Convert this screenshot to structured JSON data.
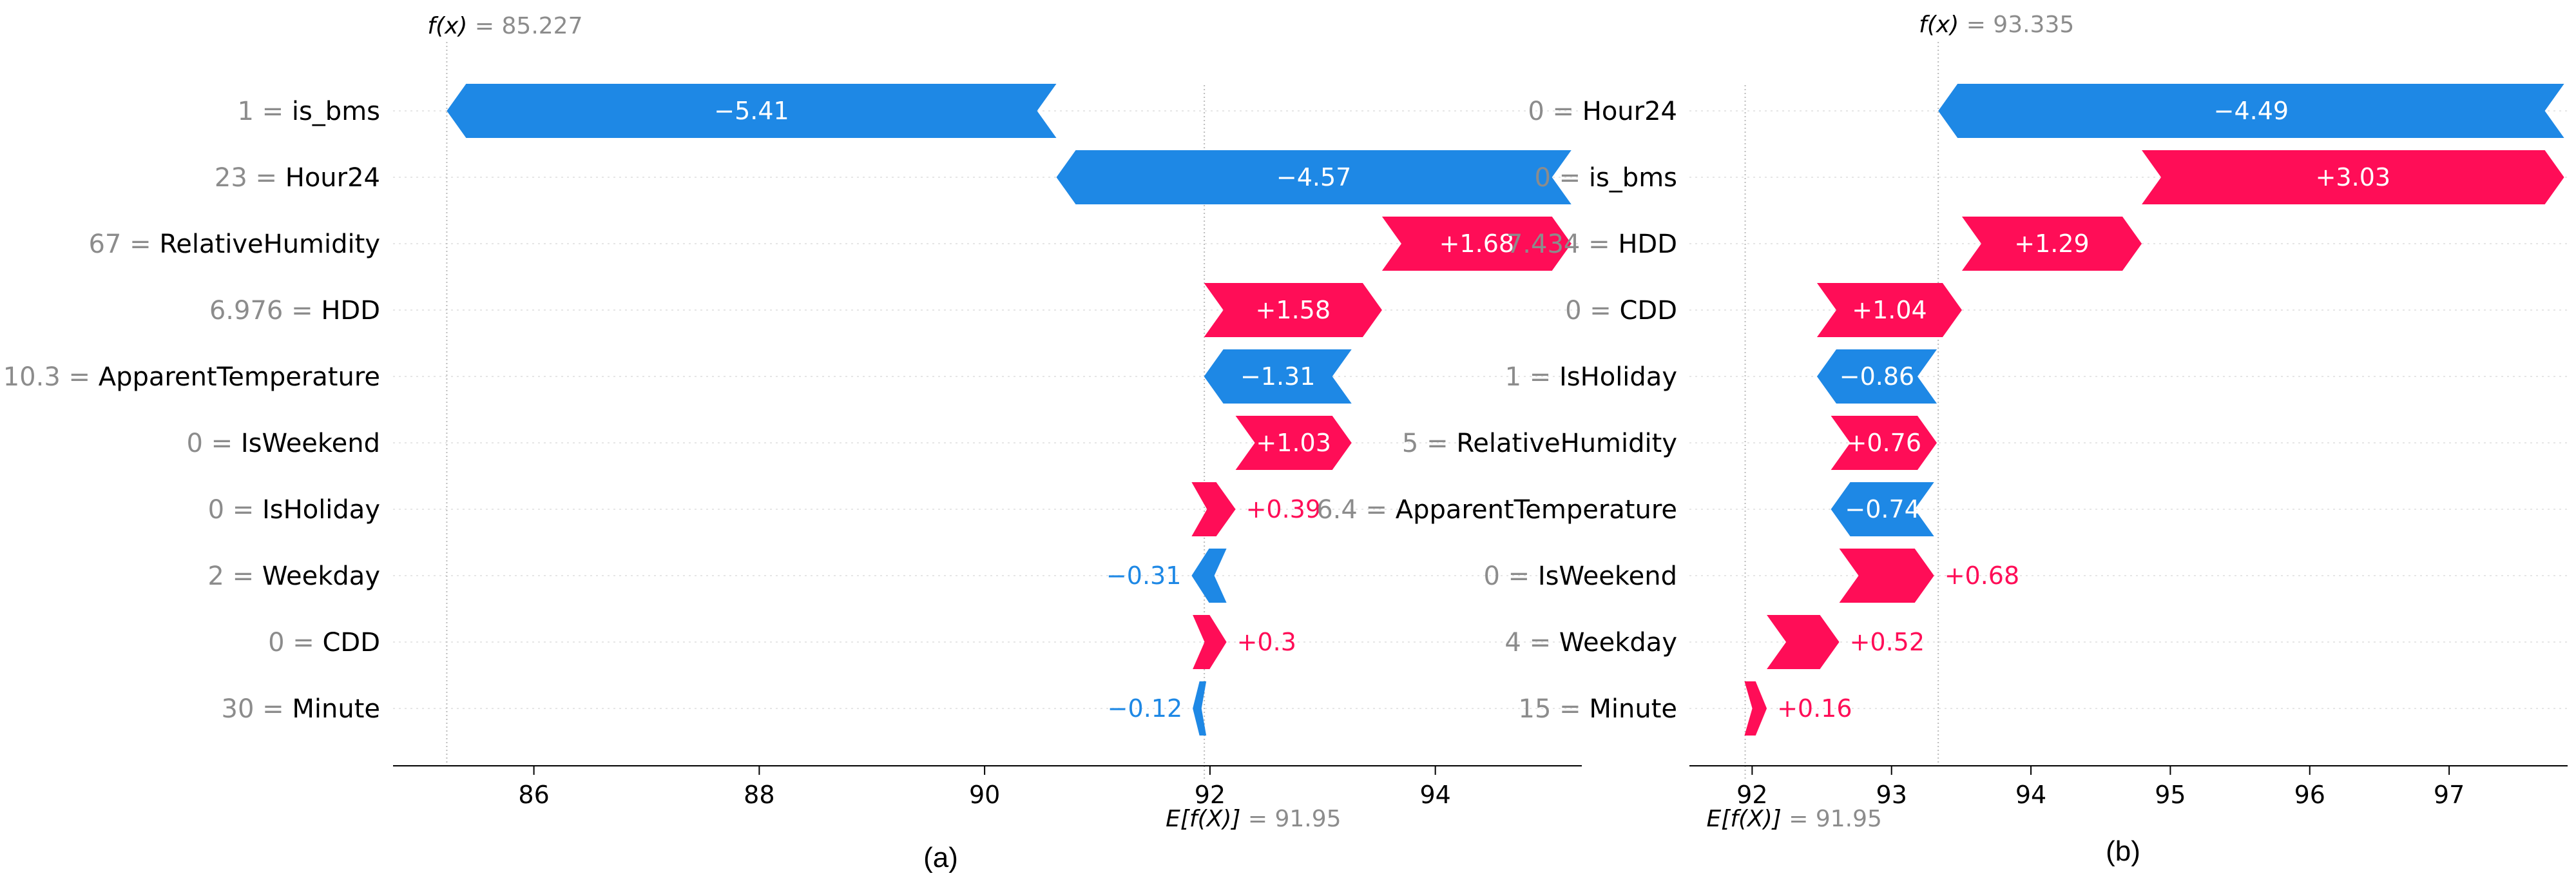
{
  "colors": {
    "negative": "#1e88e5",
    "positive": "#ff0d57",
    "muted": "#8c8c8c",
    "grid": "#e6e6e6"
  },
  "chart_data": [
    {
      "type": "bar",
      "subtype": "shap-waterfall",
      "caption": "(a)",
      "fx": 85.227,
      "fx_label": "f(x)",
      "fx_value": "= 85.227",
      "base": 91.95,
      "base_label": "E[f(X)]",
      "base_value": "= 91.95",
      "xlim": [
        84.75,
        95.3
      ],
      "xticks": [
        "86",
        "88",
        "90",
        "92",
        "94"
      ],
      "features": [
        {
          "name": "is_bms",
          "value": "1 =",
          "shap": -5.41,
          "label": "−5.41"
        },
        {
          "name": "Hour24",
          "value": "23 =",
          "shap": -4.57,
          "label": "−4.57"
        },
        {
          "name": "RelativeHumidity",
          "value": "67 =",
          "shap": 1.68,
          "label": "+1.68"
        },
        {
          "name": "HDD",
          "value": "6.976 =",
          "shap": 1.58,
          "label": "+1.58"
        },
        {
          "name": "ApparentTemperature",
          "value": "10.3 =",
          "shap": -1.31,
          "label": "−1.31"
        },
        {
          "name": "IsWeekend",
          "value": "0 =",
          "shap": 1.03,
          "label": "+1.03"
        },
        {
          "name": "IsHoliday",
          "value": "0 =",
          "shap": 0.39,
          "label": "+0.39"
        },
        {
          "name": "Weekday",
          "value": "2 =",
          "shap": -0.31,
          "label": "−0.31"
        },
        {
          "name": "CDD",
          "value": "0 =",
          "shap": 0.3,
          "label": "+0.3"
        },
        {
          "name": "Minute",
          "value": "30 =",
          "shap": -0.12,
          "label": "−0.12"
        }
      ]
    },
    {
      "type": "bar",
      "subtype": "shap-waterfall",
      "caption": "(b)",
      "fx": 93.335,
      "fx_label": "f(x)",
      "fx_value": "= 93.335",
      "base": 91.95,
      "base_label": "E[f(X)]",
      "base_value": "= 91.95",
      "xlim": [
        91.55,
        97.85
      ],
      "xticks": [
        "92",
        "93",
        "94",
        "95",
        "96",
        "97"
      ],
      "features": [
        {
          "name": "Hour24",
          "value": "0 =",
          "shap": -4.49,
          "label": "−4.49"
        },
        {
          "name": "is_bms",
          "value": "0 =",
          "shap": 3.03,
          "label": "+3.03"
        },
        {
          "name": "HDD",
          "value": "7.434 =",
          "shap": 1.29,
          "label": "+1.29"
        },
        {
          "name": "CDD",
          "value": "0 =",
          "shap": 1.04,
          "label": "+1.04"
        },
        {
          "name": "IsHoliday",
          "value": "1 =",
          "shap": -0.86,
          "label": "−0.86"
        },
        {
          "name": "RelativeHumidity",
          "value": "5 =",
          "shap": 0.76,
          "label": "+0.76"
        },
        {
          "name": "ApparentTemperature",
          "value": "6.4 =",
          "shap": -0.74,
          "label": "−0.74"
        },
        {
          "name": "IsWeekend",
          "value": "0 =",
          "shap": 0.68,
          "label": "+0.68"
        },
        {
          "name": "Weekday",
          "value": "4 =",
          "shap": 0.52,
          "label": "+0.52"
        },
        {
          "name": "Minute",
          "value": "15 =",
          "shap": 0.16,
          "label": "+0.16"
        }
      ]
    }
  ]
}
